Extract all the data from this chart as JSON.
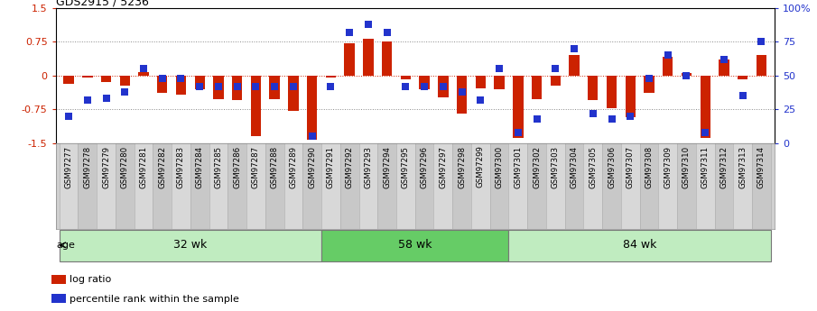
{
  "title": "GDS2915 / 5236",
  "samples": [
    "GSM97277",
    "GSM97278",
    "GSM97279",
    "GSM97280",
    "GSM97281",
    "GSM97282",
    "GSM97283",
    "GSM97284",
    "GSM97285",
    "GSM97286",
    "GSM97287",
    "GSM97288",
    "GSM97289",
    "GSM97290",
    "GSM97291",
    "GSM97292",
    "GSM97293",
    "GSM97294",
    "GSM97295",
    "GSM97296",
    "GSM97297",
    "GSM97298",
    "GSM97299",
    "GSM97300",
    "GSM97301",
    "GSM97302",
    "GSM97303",
    "GSM97304",
    "GSM97305",
    "GSM97306",
    "GSM97307",
    "GSM97308",
    "GSM97309",
    "GSM97310",
    "GSM97311",
    "GSM97312",
    "GSM97313",
    "GSM97314"
  ],
  "log_ratio": [
    -0.18,
    -0.05,
    -0.15,
    -0.22,
    0.08,
    -0.38,
    -0.42,
    -0.3,
    -0.52,
    -0.55,
    -1.35,
    -0.52,
    -0.78,
    -1.42,
    -0.05,
    0.72,
    0.82,
    0.75,
    -0.08,
    -0.3,
    -0.48,
    -0.85,
    -0.28,
    -0.3,
    -1.38,
    -0.52,
    -0.22,
    0.45,
    -0.55,
    -0.72,
    -0.92,
    -0.38,
    0.42,
    0.05,
    -1.38,
    0.35,
    -0.08,
    0.45
  ],
  "percentile": [
    20,
    32,
    33,
    38,
    55,
    48,
    48,
    42,
    42,
    42,
    42,
    42,
    42,
    5,
    42,
    82,
    88,
    82,
    42,
    42,
    42,
    38,
    32,
    55,
    8,
    18,
    55,
    70,
    22,
    18,
    20,
    48,
    65,
    50,
    8,
    62,
    35,
    75
  ],
  "groups": [
    {
      "label": "32 wk",
      "start": 0,
      "end": 14
    },
    {
      "label": "58 wk",
      "start": 14,
      "end": 24
    },
    {
      "label": "84 wk",
      "start": 24,
      "end": 38
    }
  ],
  "bar_color": "#cc2200",
  "dot_color": "#2233cc",
  "group_color_light": "#c0ecc0",
  "group_color_dark": "#66cc66",
  "tick_bg_color": "#d0d0d0",
  "tick_bg_color_alt": "#c0c0c0"
}
